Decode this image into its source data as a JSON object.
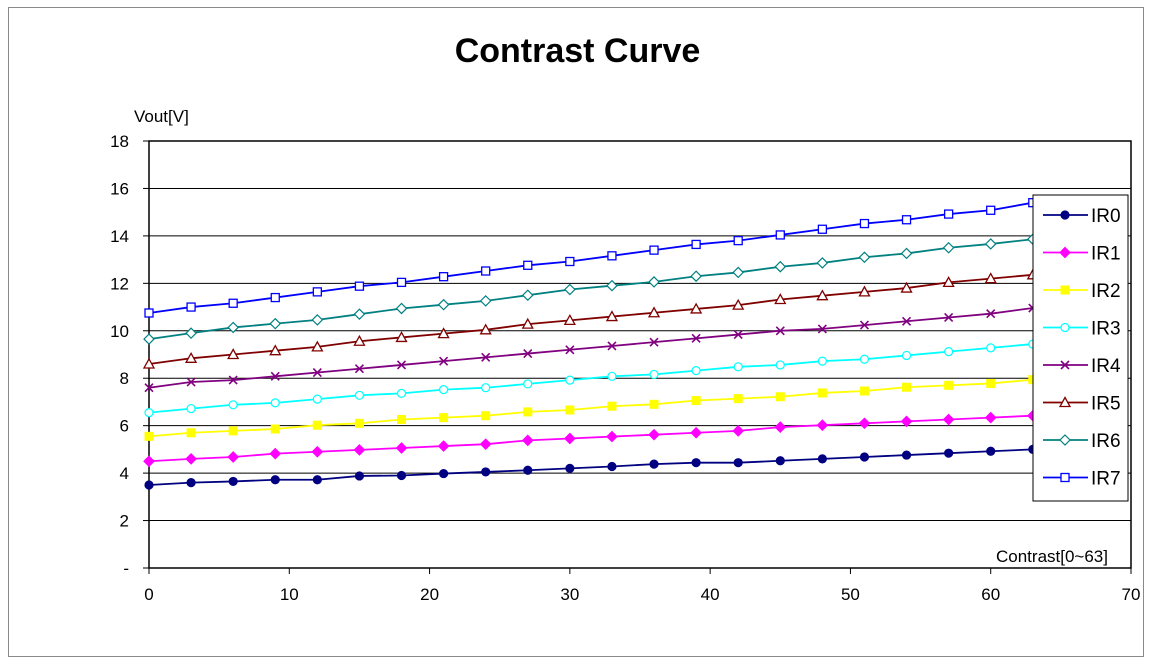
{
  "chart_data": {
    "type": "line",
    "title": "Contrast Curve",
    "ylabel": "Vout[V]",
    "xlabel": "Contrast[0~63]",
    "xlim": [
      0,
      70
    ],
    "ylim": [
      0,
      18
    ],
    "xticks": [
      "0",
      "10",
      "20",
      "30",
      "40",
      "50",
      "60",
      "70"
    ],
    "yticks": [
      "-",
      "2",
      "4",
      "6",
      "8",
      "10",
      "12",
      "14",
      "16",
      "18"
    ],
    "grid": "horizontal",
    "legend_position": "right",
    "x": [
      0,
      3,
      6,
      9,
      12,
      15,
      18,
      21,
      24,
      27,
      30,
      33,
      36,
      39,
      42,
      45,
      48,
      51,
      54,
      57,
      60,
      63
    ],
    "series": [
      {
        "name": "IR0",
        "color": "#000080",
        "marker": "circle",
        "values": [
          3.5,
          3.6,
          3.65,
          3.72,
          3.72,
          3.88,
          3.9,
          3.98,
          4.05,
          4.12,
          4.2,
          4.28,
          4.38,
          4.44,
          4.44,
          4.52,
          4.6,
          4.68,
          4.76,
          4.84,
          4.92,
          5.0
        ]
      },
      {
        "name": "IR1",
        "color": "#ff00ff",
        "marker": "diamond",
        "values": [
          4.5,
          4.6,
          4.68,
          4.82,
          4.9,
          4.98,
          5.06,
          5.14,
          5.22,
          5.38,
          5.46,
          5.54,
          5.62,
          5.7,
          5.78,
          5.94,
          6.02,
          6.1,
          6.18,
          6.26,
          6.34,
          6.42
        ]
      },
      {
        "name": "IR2",
        "color": "#ffff00",
        "marker": "square",
        "values": [
          5.55,
          5.7,
          5.78,
          5.86,
          6.02,
          6.1,
          6.26,
          6.34,
          6.42,
          6.58,
          6.66,
          6.82,
          6.9,
          7.06,
          7.14,
          7.22,
          7.38,
          7.46,
          7.62,
          7.7,
          7.78,
          7.94
        ]
      },
      {
        "name": "IR3",
        "color": "#00ffff",
        "marker": "circle",
        "values": [
          6.55,
          6.72,
          6.88,
          6.96,
          7.12,
          7.28,
          7.36,
          7.52,
          7.6,
          7.76,
          7.92,
          8.08,
          8.16,
          8.32,
          8.48,
          8.56,
          8.72,
          8.8,
          8.96,
          9.12,
          9.28,
          9.44
        ]
      },
      {
        "name": "IR4",
        "color": "#800080",
        "marker": "x",
        "values": [
          7.6,
          7.84,
          7.92,
          8.08,
          8.24,
          8.4,
          8.56,
          8.72,
          8.88,
          9.04,
          9.2,
          9.36,
          9.52,
          9.68,
          9.84,
          10.0,
          10.08,
          10.24,
          10.4,
          10.56,
          10.72,
          10.96
        ]
      },
      {
        "name": "IR5",
        "color": "#800000",
        "marker": "triangle",
        "values": [
          8.6,
          8.84,
          9.0,
          9.16,
          9.32,
          9.56,
          9.72,
          9.88,
          10.04,
          10.28,
          10.44,
          10.6,
          10.76,
          10.92,
          11.08,
          11.32,
          11.48,
          11.64,
          11.8,
          12.04,
          12.2,
          12.36
        ]
      },
      {
        "name": "IR6",
        "color": "#008080",
        "marker": "diamond",
        "values": [
          9.65,
          9.9,
          10.14,
          10.3,
          10.46,
          10.7,
          10.94,
          11.1,
          11.26,
          11.5,
          11.74,
          11.9,
          12.06,
          12.3,
          12.46,
          12.7,
          12.86,
          13.1,
          13.26,
          13.5,
          13.66,
          13.86
        ]
      },
      {
        "name": "IR7",
        "color": "#0000ff",
        "marker": "square-open",
        "values": [
          10.75,
          11.0,
          11.16,
          11.4,
          11.64,
          11.88,
          12.04,
          12.28,
          12.52,
          12.76,
          12.92,
          13.16,
          13.4,
          13.64,
          13.8,
          14.04,
          14.28,
          14.52,
          14.68,
          14.92,
          15.08,
          15.4
        ]
      }
    ]
  }
}
